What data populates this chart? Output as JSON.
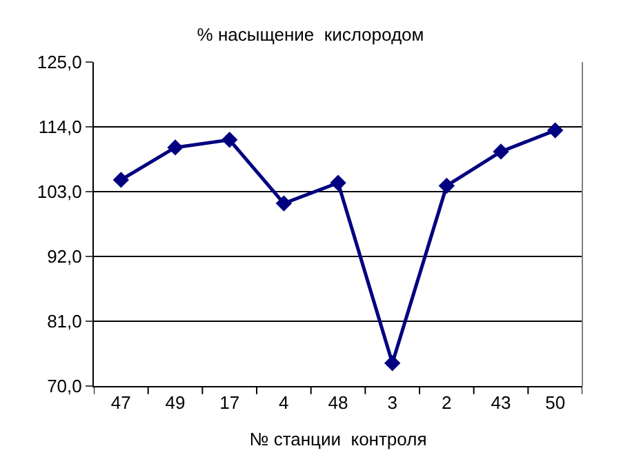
{
  "chart_data": {
    "type": "line",
    "title": "% насыщение  кислородом",
    "xlabel": "№ станции  контроля",
    "categories": [
      "47",
      "49",
      "17",
      "4",
      "48",
      "3",
      "2",
      "43",
      "50"
    ],
    "series": [
      {
        "color": "#000080",
        "values": [
          105.0,
          110.5,
          111.8,
          101.0,
          104.5,
          73.9,
          104.0,
          109.8,
          113.4
        ]
      }
    ],
    "ylim": [
      70,
      125
    ],
    "yticks": [
      {
        "value": 70,
        "label": "70,0"
      },
      {
        "value": 81,
        "label": "81,0"
      },
      {
        "value": 92,
        "label": "92,0"
      },
      {
        "value": 103,
        "label": "103,0"
      },
      {
        "value": 114,
        "label": "114,0"
      },
      {
        "value": 125,
        "label": "125,0"
      }
    ],
    "grid": "y",
    "legend": false,
    "marker": "diamond",
    "line_style": "solid"
  }
}
